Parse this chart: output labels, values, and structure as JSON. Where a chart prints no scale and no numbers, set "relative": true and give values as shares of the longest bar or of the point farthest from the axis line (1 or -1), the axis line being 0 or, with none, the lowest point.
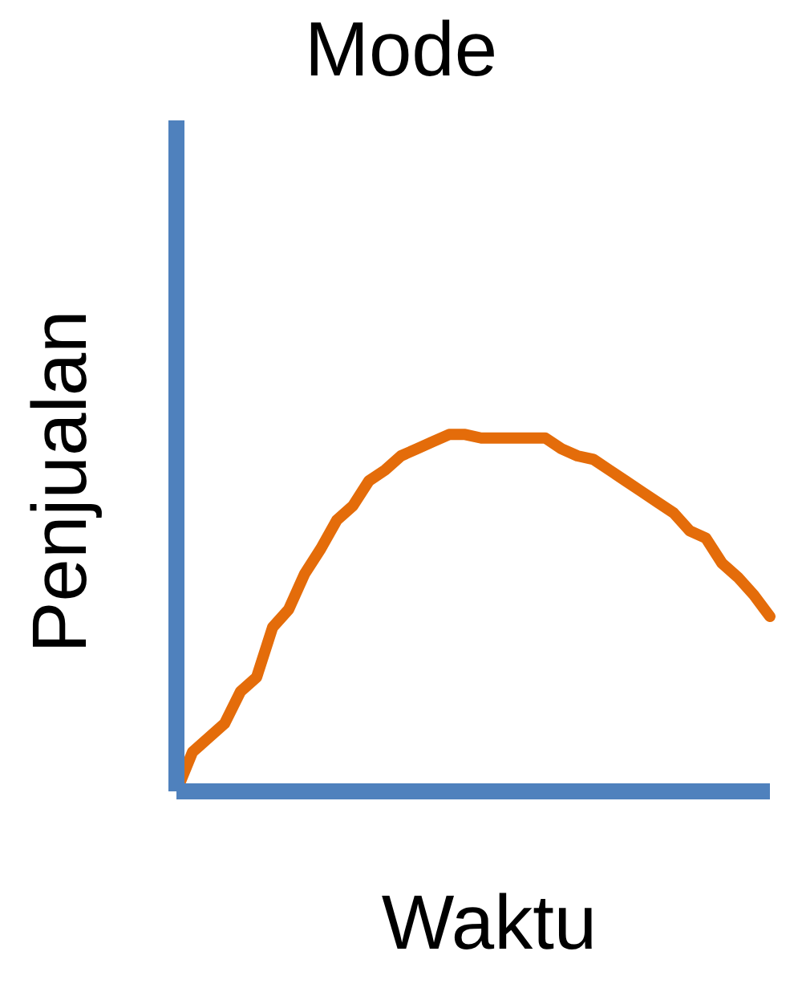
{
  "chart_data": {
    "type": "line",
    "title": "Mode",
    "xlabel": "Waktu",
    "ylabel": "Penjualan",
    "relative": true,
    "categories": [
      null,
      null,
      null,
      null,
      null,
      null,
      null,
      null,
      null,
      null,
      null,
      null,
      null,
      null,
      null,
      null,
      null,
      null,
      null,
      null,
      null,
      null,
      null,
      null,
      null,
      null,
      null,
      null,
      null,
      null,
      null,
      null,
      null,
      null,
      null,
      null,
      null,
      null
    ],
    "series": [
      {
        "color": "#e46c0a",
        "values": [
          0,
          0.11,
          0.15,
          0.19,
          0.28,
          0.32,
          0.46,
          0.51,
          0.61,
          0.68,
          0.76,
          0.8,
          0.87,
          0.9,
          0.94,
          0.96,
          0.98,
          1,
          1,
          0.99,
          0.99,
          0.99,
          0.99,
          0.99,
          0.96,
          0.94,
          0.93,
          0.9,
          0.87,
          0.84,
          0.81,
          0.78,
          0.73,
          0.71,
          0.64,
          0.6,
          0.55,
          0.49
        ]
      }
    ],
    "grid": false,
    "legend": false,
    "marker": "none",
    "line_style": "solid"
  }
}
